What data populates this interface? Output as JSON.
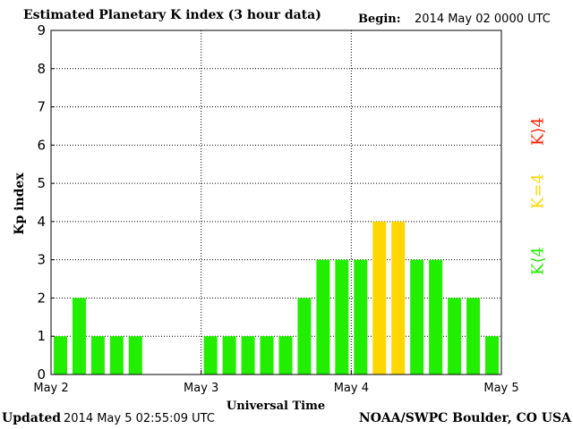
{
  "header": {
    "title": "Estimated Planetary K index (3 hour data)",
    "begin_label": "Begin:",
    "begin_value": "2014 May 02 0000 UTC"
  },
  "footer": {
    "updated_label": "Updated",
    "updated_value": "2014 May  5 02:55:09 UTC",
    "source": "NOAA/SWPC Boulder, CO USA"
  },
  "legend": {
    "red": {
      "label": "K⟩4",
      "color": "#ff2200"
    },
    "yellow": {
      "label": "K=4",
      "color": "#ffd700"
    },
    "green": {
      "label": "K⟨4",
      "color": "#22ee00"
    }
  },
  "chart_data": {
    "type": "bar",
    "title": "Estimated Planetary K index (3 hour data)",
    "xlabel": "Universal Time",
    "ylabel": "Kp index",
    "ylim": [
      0,
      9
    ],
    "yticks": [
      "0",
      "1",
      "2",
      "3",
      "4",
      "5",
      "6",
      "7",
      "8",
      "9"
    ],
    "xticks": [
      "May 2",
      "May 3",
      "May 4",
      "May 5"
    ],
    "grid": true,
    "categories": [
      "May 2 00",
      "May 2 03",
      "May 2 06",
      "May 2 09",
      "May 2 12",
      "May 2 15",
      "May 2 18",
      "May 2 21",
      "May 3 00",
      "May 3 03",
      "May 3 06",
      "May 3 09",
      "May 3 12",
      "May 3 15",
      "May 3 18",
      "May 3 21",
      "May 4 00",
      "May 4 03",
      "May 4 06",
      "May 4 09",
      "May 4 12",
      "May 4 15",
      "May 4 18",
      "May 4 21"
    ],
    "values": [
      1,
      2,
      1,
      1,
      1,
      null,
      null,
      null,
      1,
      1,
      1,
      1,
      1,
      2,
      3,
      3,
      3,
      4,
      4,
      3,
      3,
      2,
      2,
      1
    ],
    "colors": {
      "below4": "#22ee00",
      "equal4": "#ffd700",
      "above4": "#ff2200"
    }
  }
}
